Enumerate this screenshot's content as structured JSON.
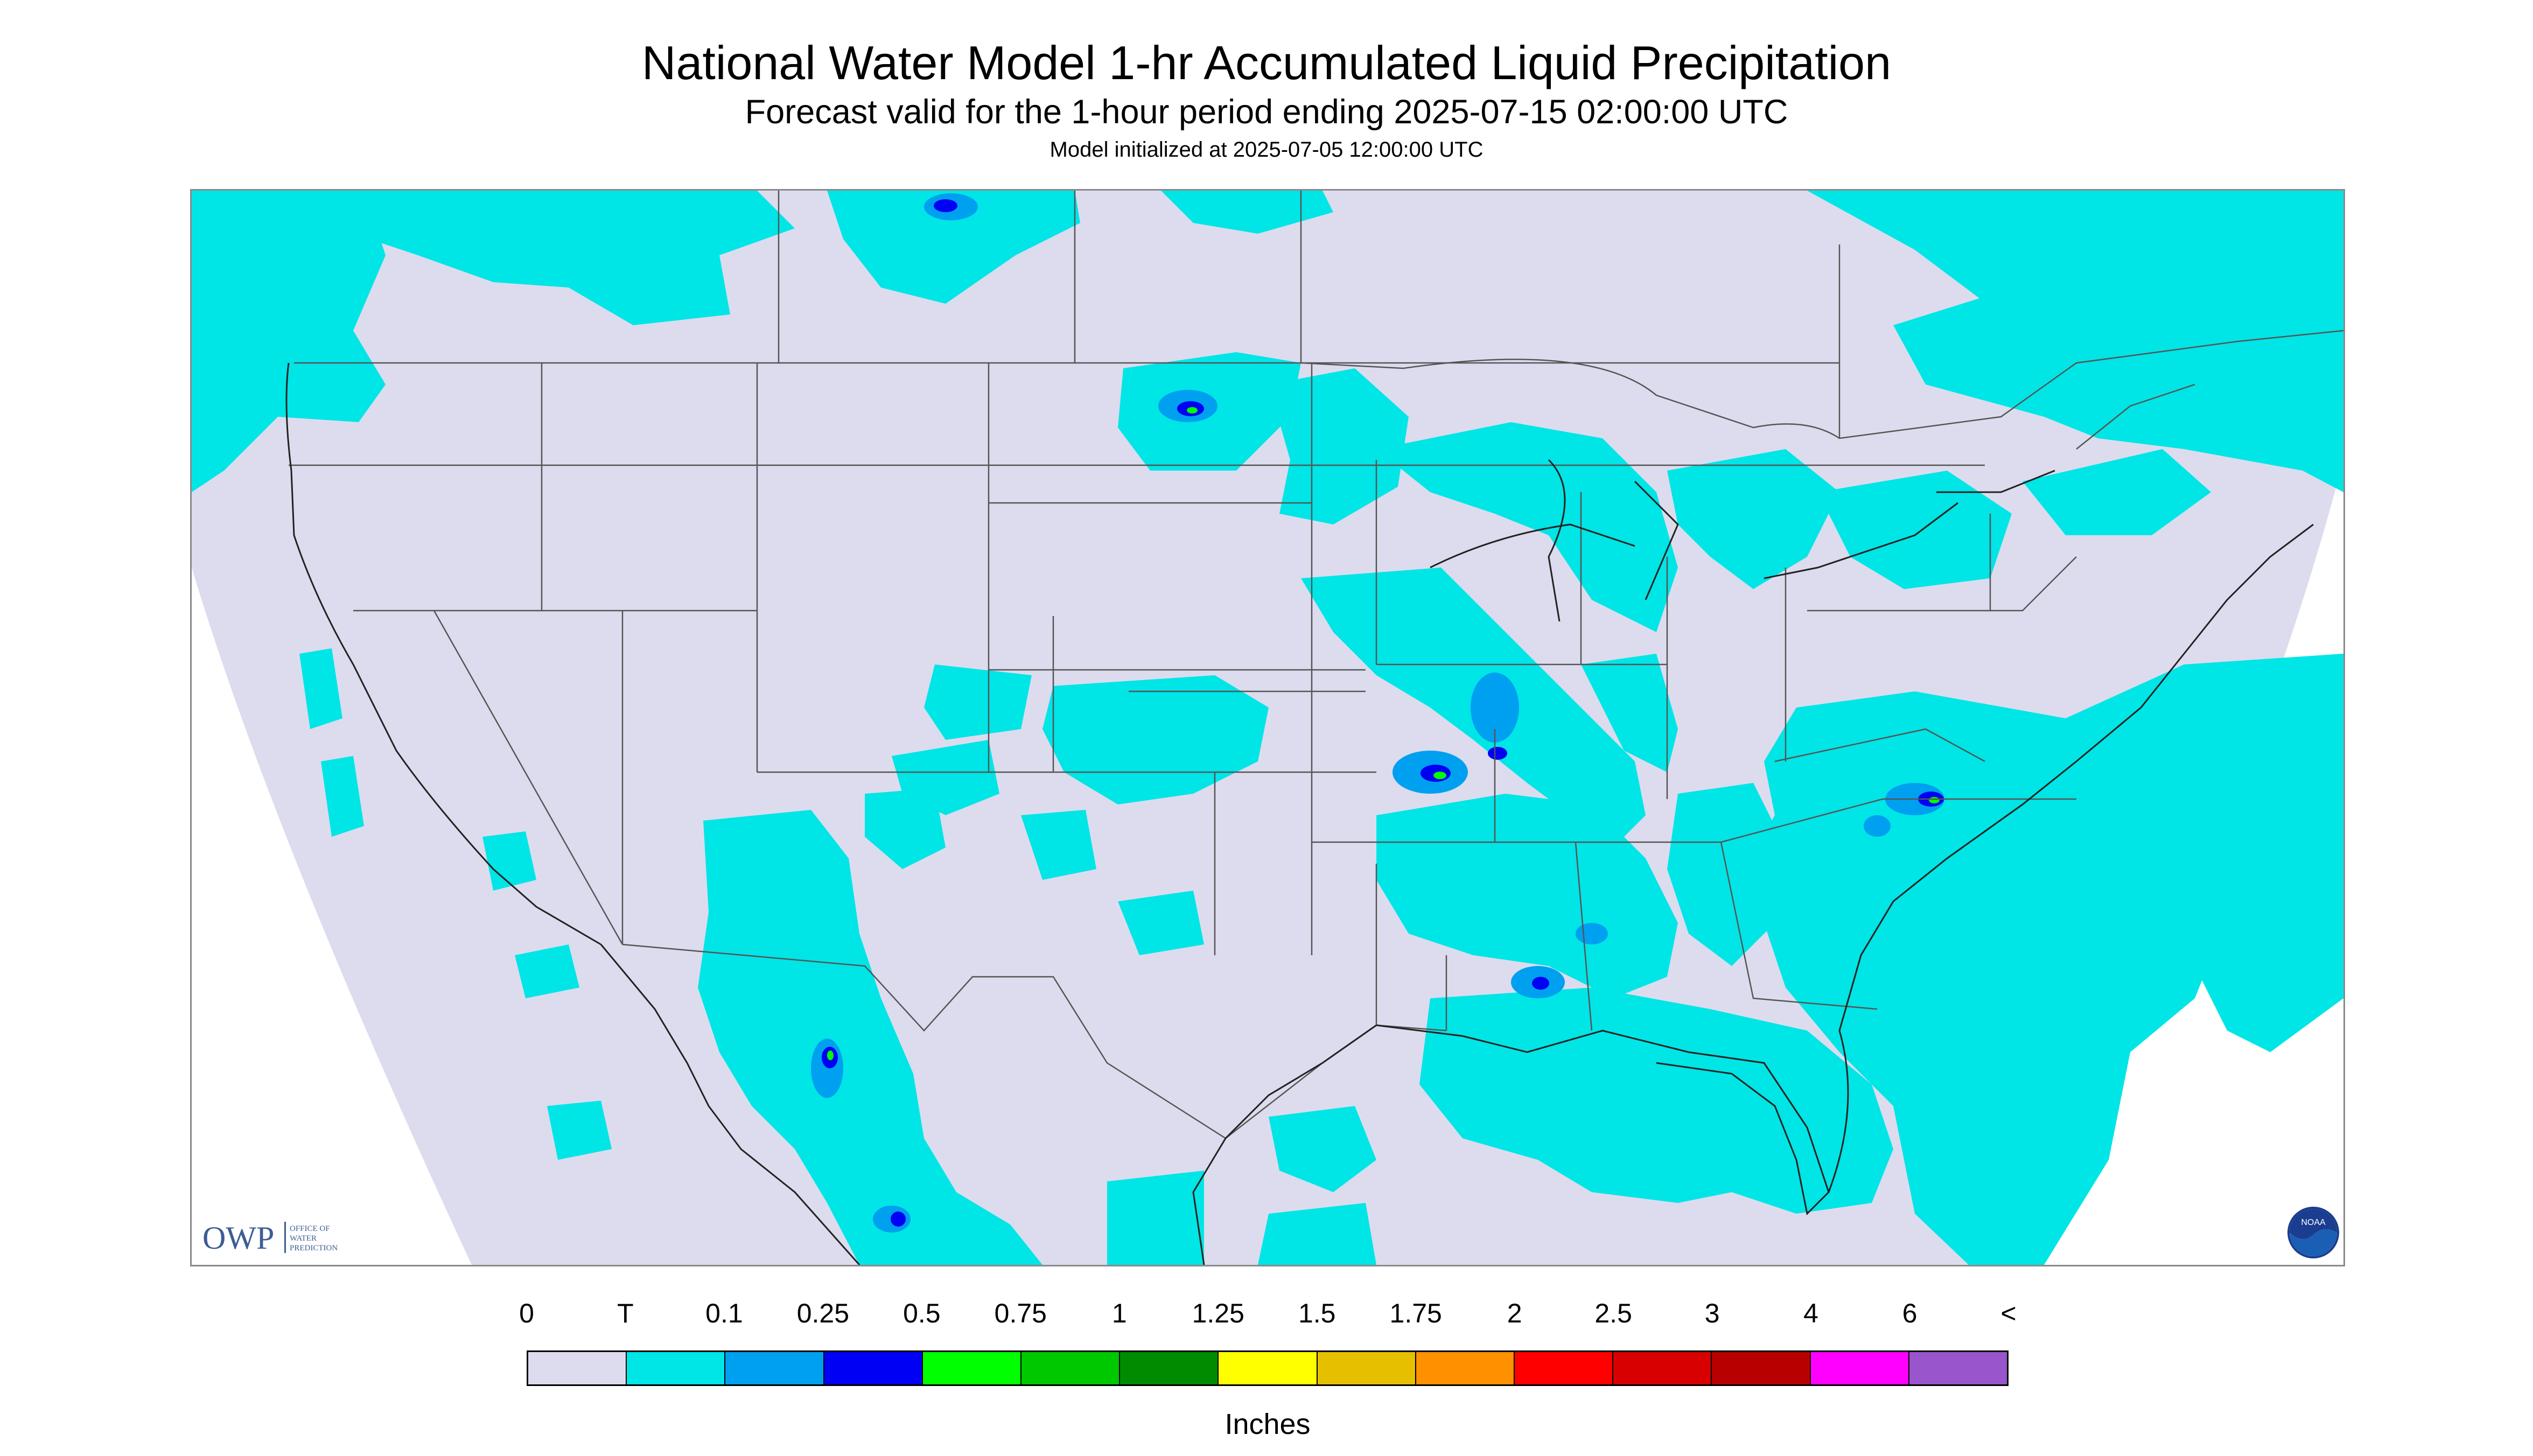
{
  "title": "National Water Model 1-hr Accumulated Liquid Precipitation",
  "subtitle": "Forecast valid for the 1-hour period ending 2025-07-15 02:00:00 UTC",
  "init_line": "Model initialized at 2025-07-05 12:00:00 UTC",
  "logos": {
    "owp_abbrev": "OWP",
    "owp_full": [
      "OFFICE OF",
      "WATER",
      "PREDICTION"
    ],
    "noaa": "NOAA"
  },
  "legend": {
    "labels": [
      "0",
      "T",
      "0.1",
      "0.25",
      "0.5",
      "0.75",
      "1",
      "1.25",
      "1.5",
      "1.75",
      "2",
      "2.5",
      "3",
      "4",
      "6",
      "<"
    ],
    "colors": [
      "#dcdcee",
      "#00e5e6",
      "#00a0f0",
      "#0000f5",
      "#00ff00",
      "#00c800",
      "#008c00",
      "#ffff00",
      "#e6c000",
      "#ff9000",
      "#ff0000",
      "#d80000",
      "#b90000",
      "#ff00ff",
      "#9955cc"
    ],
    "units": "Inches"
  },
  "map": {
    "projection": "Lambert Conformal Conic",
    "background_color": "#dcdcee",
    "trace_color": "#00e5e6",
    "light_blue_color": "#00a0f0",
    "blue_color": "#0000f5",
    "green_color": "#00ff00"
  }
}
